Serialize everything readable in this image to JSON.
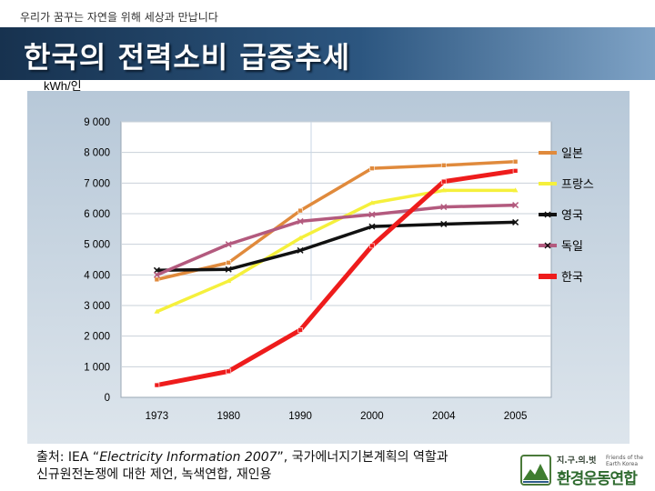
{
  "header": {
    "tagline": "우리가 꿈꾸는 자연을 위해 세상과 만납니다",
    "title": "한국의 전력소비 급증추세"
  },
  "chart_data": {
    "type": "line",
    "title": "한국의 전력소비 급증추세",
    "unit_label": "kWh/인",
    "xlabel": "",
    "ylabel": "kWh/인",
    "categories": [
      "1973",
      "1980",
      "1990",
      "2000",
      "2004",
      "2005"
    ],
    "ylim": [
      0,
      9000
    ],
    "yticks": [
      0,
      1000,
      2000,
      3000,
      4000,
      5000,
      6000,
      7000,
      8000,
      9000
    ],
    "ytick_labels": [
      "0",
      "1 000",
      "2 000",
      "3 000",
      "4 000",
      "5 000",
      "6 000",
      "7 000",
      "8 000",
      "9 000"
    ],
    "grid": true,
    "legend_position": "right",
    "series": [
      {
        "name": "일본",
        "color": "#e08a3c",
        "marker": "square",
        "values": [
          3850,
          4400,
          6100,
          7480,
          7580,
          7700
        ]
      },
      {
        "name": "프랑스",
        "color": "#f5f03c",
        "marker": "triangle",
        "values": [
          2800,
          3800,
          5200,
          6350,
          6760,
          6760
        ]
      },
      {
        "name": "영국",
        "color": "#111111",
        "marker": "x",
        "values": [
          4150,
          4180,
          4800,
          5580,
          5660,
          5720
        ]
      },
      {
        "name": "독일",
        "color": "#b35a7e",
        "marker": "x",
        "values": [
          4000,
          5000,
          5750,
          5970,
          6220,
          6280
        ]
      },
      {
        "name": "한국",
        "color": "#ee1c1c",
        "marker": "square",
        "values": [
          400,
          850,
          2200,
          4950,
          7050,
          7400
        ]
      }
    ]
  },
  "footer": {
    "source_prefix": "출처: IEA “",
    "source_italic": "Electricity Information 2007",
    "source_suffix": "”, 국가에너지기본계획의 역할과",
    "source_line2": "신규원전논쟁에 대한 제언, 녹색연합, 재인용"
  },
  "logo": {
    "subtitle": "지.구.의.벗",
    "subtitle_en": "Friends of the Earth Korea",
    "name": "환경운동연합"
  }
}
